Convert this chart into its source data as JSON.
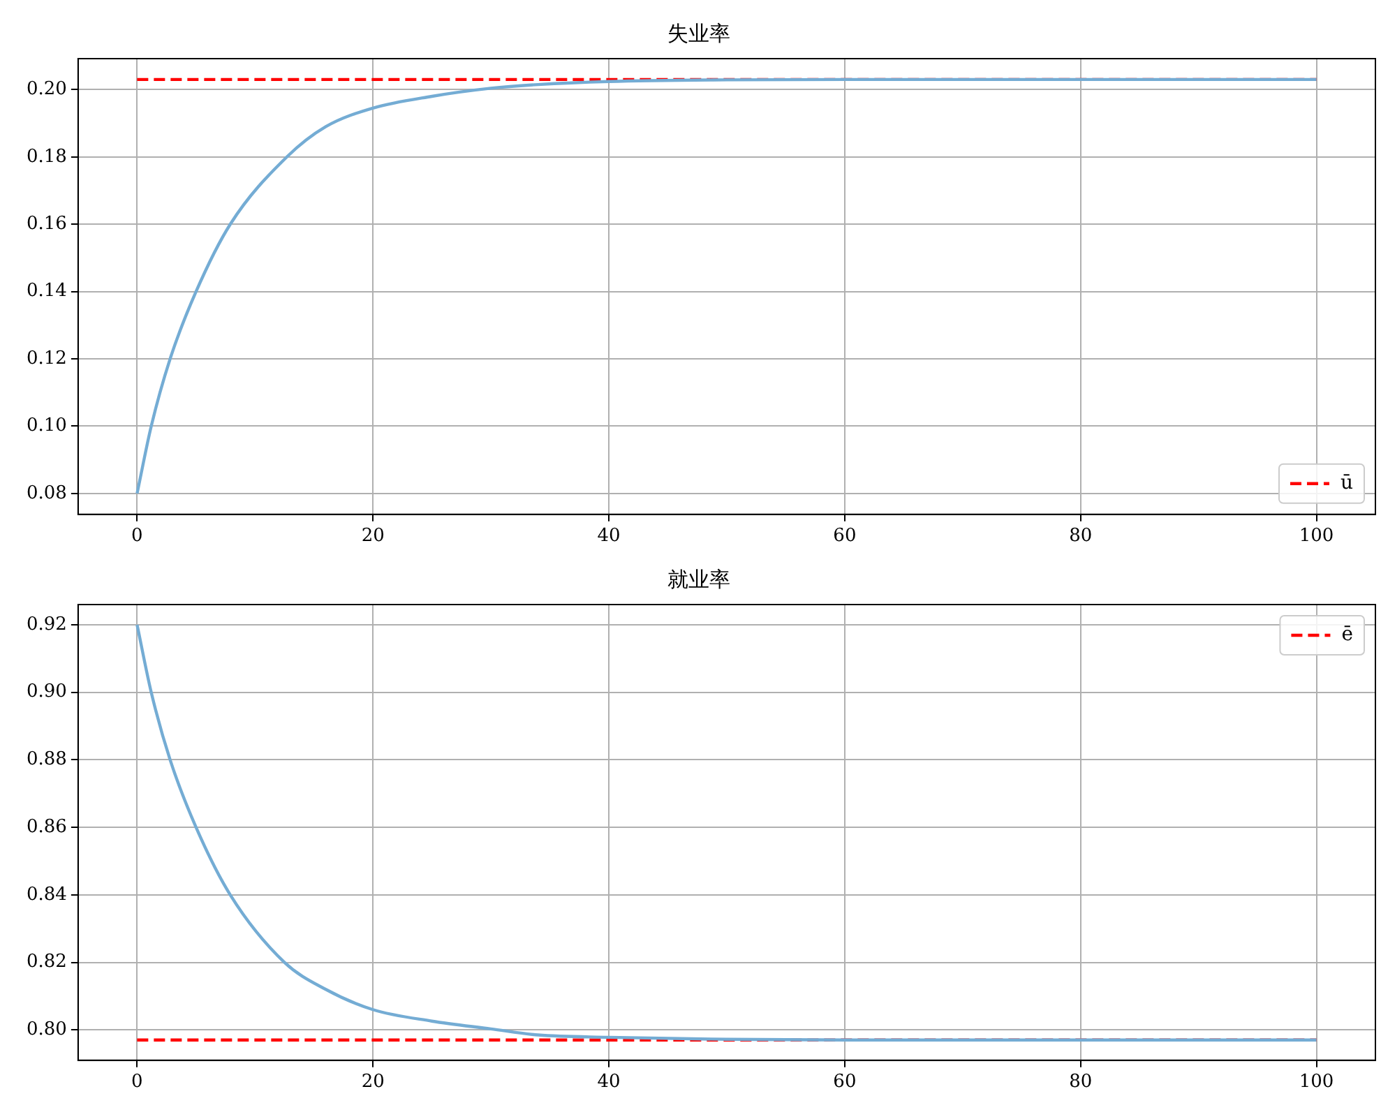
{
  "chart_data": [
    {
      "type": "line",
      "title": "失业率",
      "xlim": [
        -5,
        105
      ],
      "xticks": [
        0,
        20,
        40,
        60,
        80,
        100
      ],
      "ylim": [
        0.0738,
        0.2092
      ],
      "yticks": [
        {
          "value": 0.08,
          "label": "0.08"
        },
        {
          "value": 0.1,
          "label": "0.10"
        },
        {
          "value": 0.12,
          "label": "0.12"
        },
        {
          "value": 0.14,
          "label": "0.14"
        },
        {
          "value": 0.16,
          "label": "0.16"
        },
        {
          "value": 0.18,
          "label": "0.18"
        },
        {
          "value": 0.2,
          "label": "0.20"
        }
      ],
      "grid": true,
      "legend": "bottom right",
      "marker": "none",
      "line_style": "solid",
      "series": [
        {
          "color": "#74acd4",
          "x": [
            0,
            1.2,
            2.8,
            5,
            7.9,
            12.7,
            16,
            20,
            25,
            30,
            34,
            40,
            50,
            60,
            80,
            100
          ],
          "values": [
            0.08,
            0.1,
            0.12,
            0.14,
            0.16,
            0.18,
            0.189,
            0.1945,
            0.198,
            0.2004,
            0.2015,
            0.2024,
            0.2029,
            0.203,
            0.203,
            0.203
          ]
        }
      ],
      "ref_lines": [
        {
          "axis": "y",
          "value": 0.203,
          "label": "ū",
          "color": "#ff0000",
          "line_style": "dashed"
        }
      ]
    },
    {
      "type": "line",
      "title": "就业率",
      "xlim": [
        -5,
        105
      ],
      "xticks": [
        0,
        20,
        40,
        60,
        80,
        100
      ],
      "ylim": [
        0.791,
        0.926
      ],
      "yticks": [
        {
          "value": 0.8,
          "label": "0.80"
        },
        {
          "value": 0.82,
          "label": "0.82"
        },
        {
          "value": 0.84,
          "label": "0.84"
        },
        {
          "value": 0.86,
          "label": "0.86"
        },
        {
          "value": 0.88,
          "label": "0.88"
        },
        {
          "value": 0.9,
          "label": "0.90"
        },
        {
          "value": 0.92,
          "label": "0.92"
        }
      ],
      "grid": true,
      "legend": "top right",
      "marker": "none",
      "line_style": "solid",
      "series": [
        {
          "color": "#74acd4",
          "x": [
            0,
            1.2,
            2.8,
            5,
            7.9,
            12.5,
            16,
            20,
            25,
            30,
            34,
            40,
            50,
            60,
            80,
            100
          ],
          "values": [
            0.92,
            0.9,
            0.88,
            0.86,
            0.84,
            0.82,
            0.812,
            0.806,
            0.8026,
            0.8003,
            0.7985,
            0.7978,
            0.7972,
            0.797,
            0.797,
            0.797
          ]
        }
      ],
      "ref_lines": [
        {
          "axis": "y",
          "value": 0.797,
          "label": "ē",
          "color": "#ff0000",
          "line_style": "dashed"
        }
      ]
    }
  ]
}
